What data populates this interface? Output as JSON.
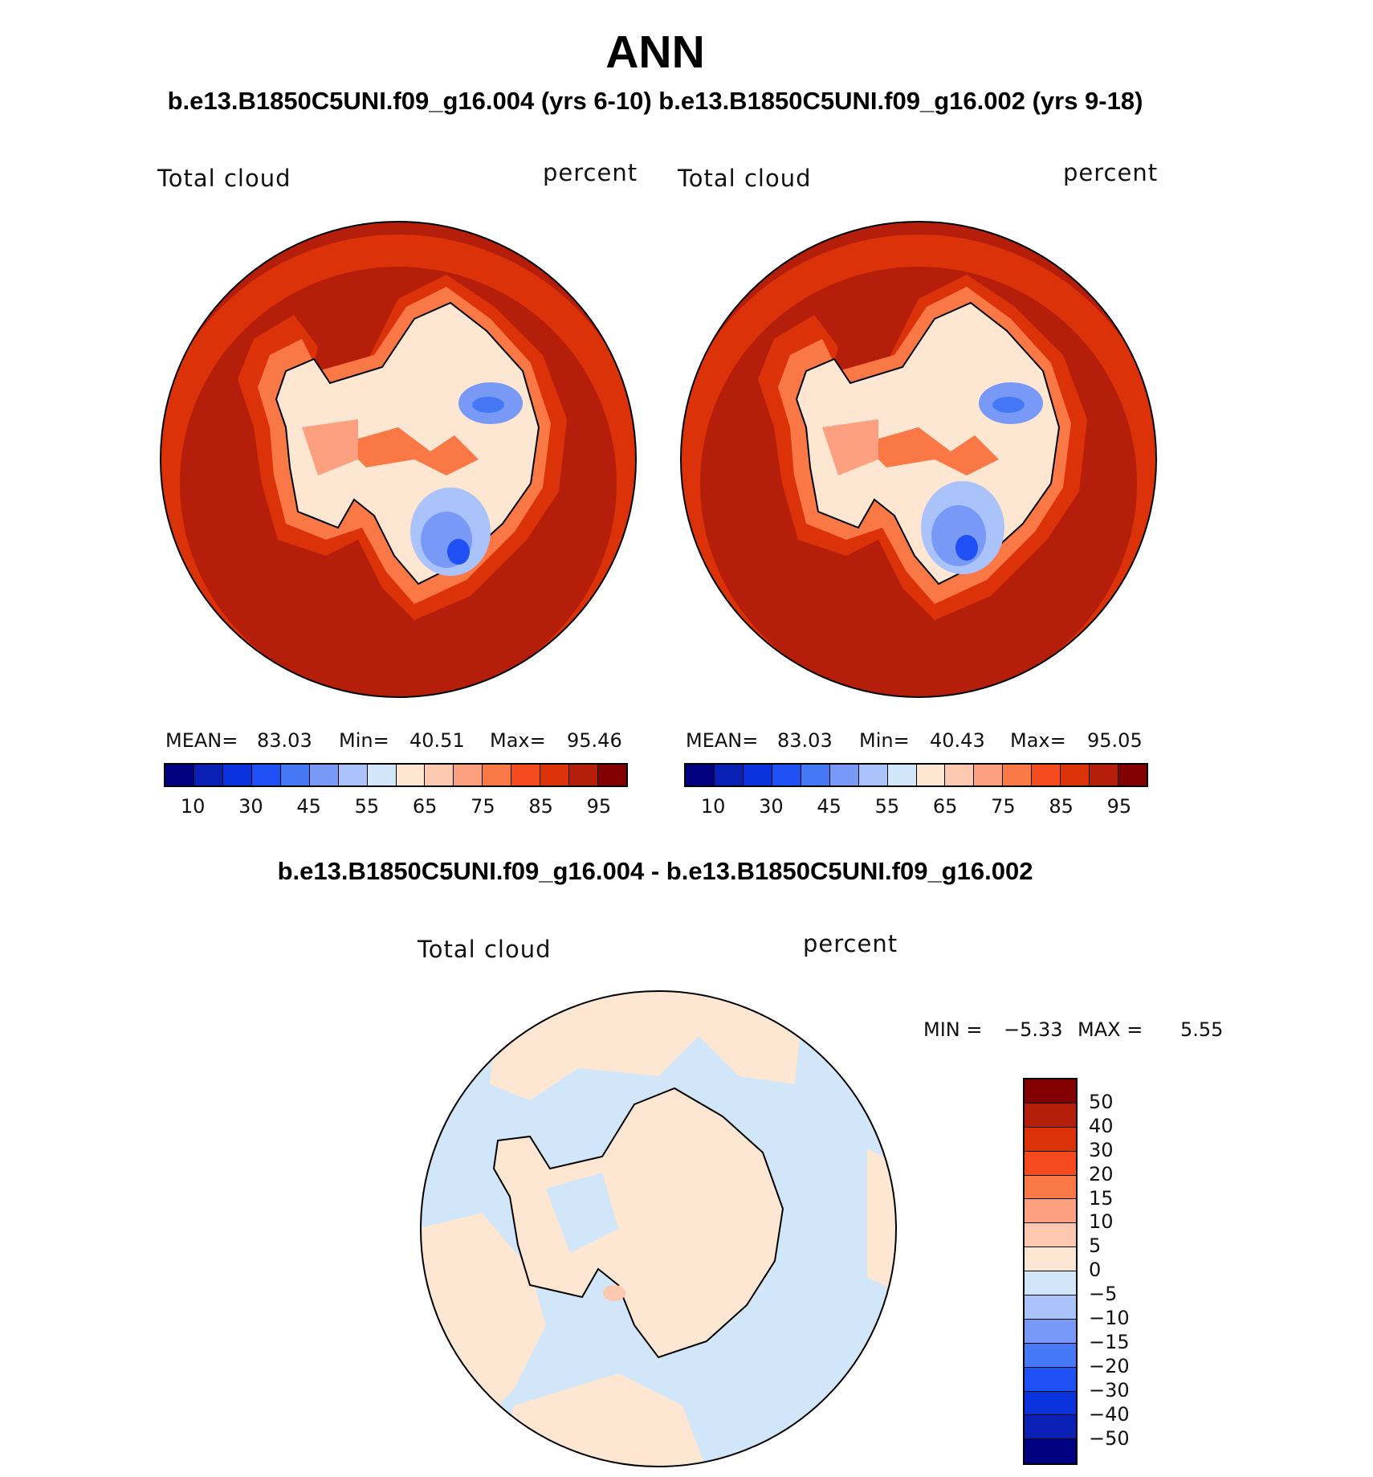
{
  "title": "ANN",
  "subtitle": "b.e13.B1850C5UNI.f09_g16.004 (yrs 6-10) b.e13.B1850C5UNI.f09_g16.002 (yrs 9-18)",
  "diff_title": "b.e13.B1850C5UNI.f09_g16.004 - b.e13.B1850C5UNI.f09_g16.002",
  "panels": [
    {
      "var_label": "Total cloud",
      "units": "percent",
      "mean_label": "MEAN=",
      "mean": "83.03",
      "min_label": "Min=",
      "min": "40.51",
      "max_label": "Max=",
      "max": "95.46"
    },
    {
      "var_label": "Total cloud",
      "units": "percent",
      "mean_label": "MEAN=",
      "mean": "83.03",
      "min_label": "Min=",
      "min": "40.43",
      "max_label": "Max=",
      "max": "95.05"
    }
  ],
  "diff_panel": {
    "var_label": "Total cloud",
    "units": "percent",
    "min_label": "MIN =",
    "min": "−5.33",
    "max_label": "MAX =",
    "max": "5.55"
  },
  "colorbar": {
    "colors": [
      "#000080",
      "#0a1fb4",
      "#0a32dc",
      "#1e50f5",
      "#4678f5",
      "#7899f5",
      "#aac3fa",
      "#d2e6fa",
      "#fde6d2",
      "#fcc8b0",
      "#fca080",
      "#fa7846",
      "#f54a1e",
      "#dc320a",
      "#b41e0a",
      "#820000"
    ],
    "tick_labels": [
      "10",
      "30",
      "45",
      "55",
      "65",
      "75",
      "85",
      "95"
    ]
  },
  "diff_colorbar": {
    "colors": [
      "#820000",
      "#b41e0a",
      "#dc320a",
      "#f54a1e",
      "#fa7846",
      "#fca080",
      "#fcc8b0",
      "#fde6d2",
      "#d2e6fa",
      "#aac3fa",
      "#7899f5",
      "#4678f5",
      "#1e50f5",
      "#0a32dc",
      "#0a1fb4",
      "#000080"
    ],
    "tick_labels": [
      "50",
      "40",
      "30",
      "20",
      "15",
      "10",
      "5",
      "0",
      "−5",
      "−10",
      "−15",
      "−20",
      "−30",
      "−40",
      "−50"
    ]
  },
  "map_colors": {
    "ocean": "#b41e0a",
    "ice_edge_1": "#dc320a",
    "ice_edge_2": "#f54a1e",
    "ice_edge_3": "#fa7846",
    "interior": "#fde6d2",
    "low_1": "#aac3fa",
    "low_2": "#7899f5",
    "low_3": "#4678f5",
    "low_4": "#1e50f5",
    "diff_pos": "#fde6d2",
    "diff_neg": "#d2e6fa"
  }
}
